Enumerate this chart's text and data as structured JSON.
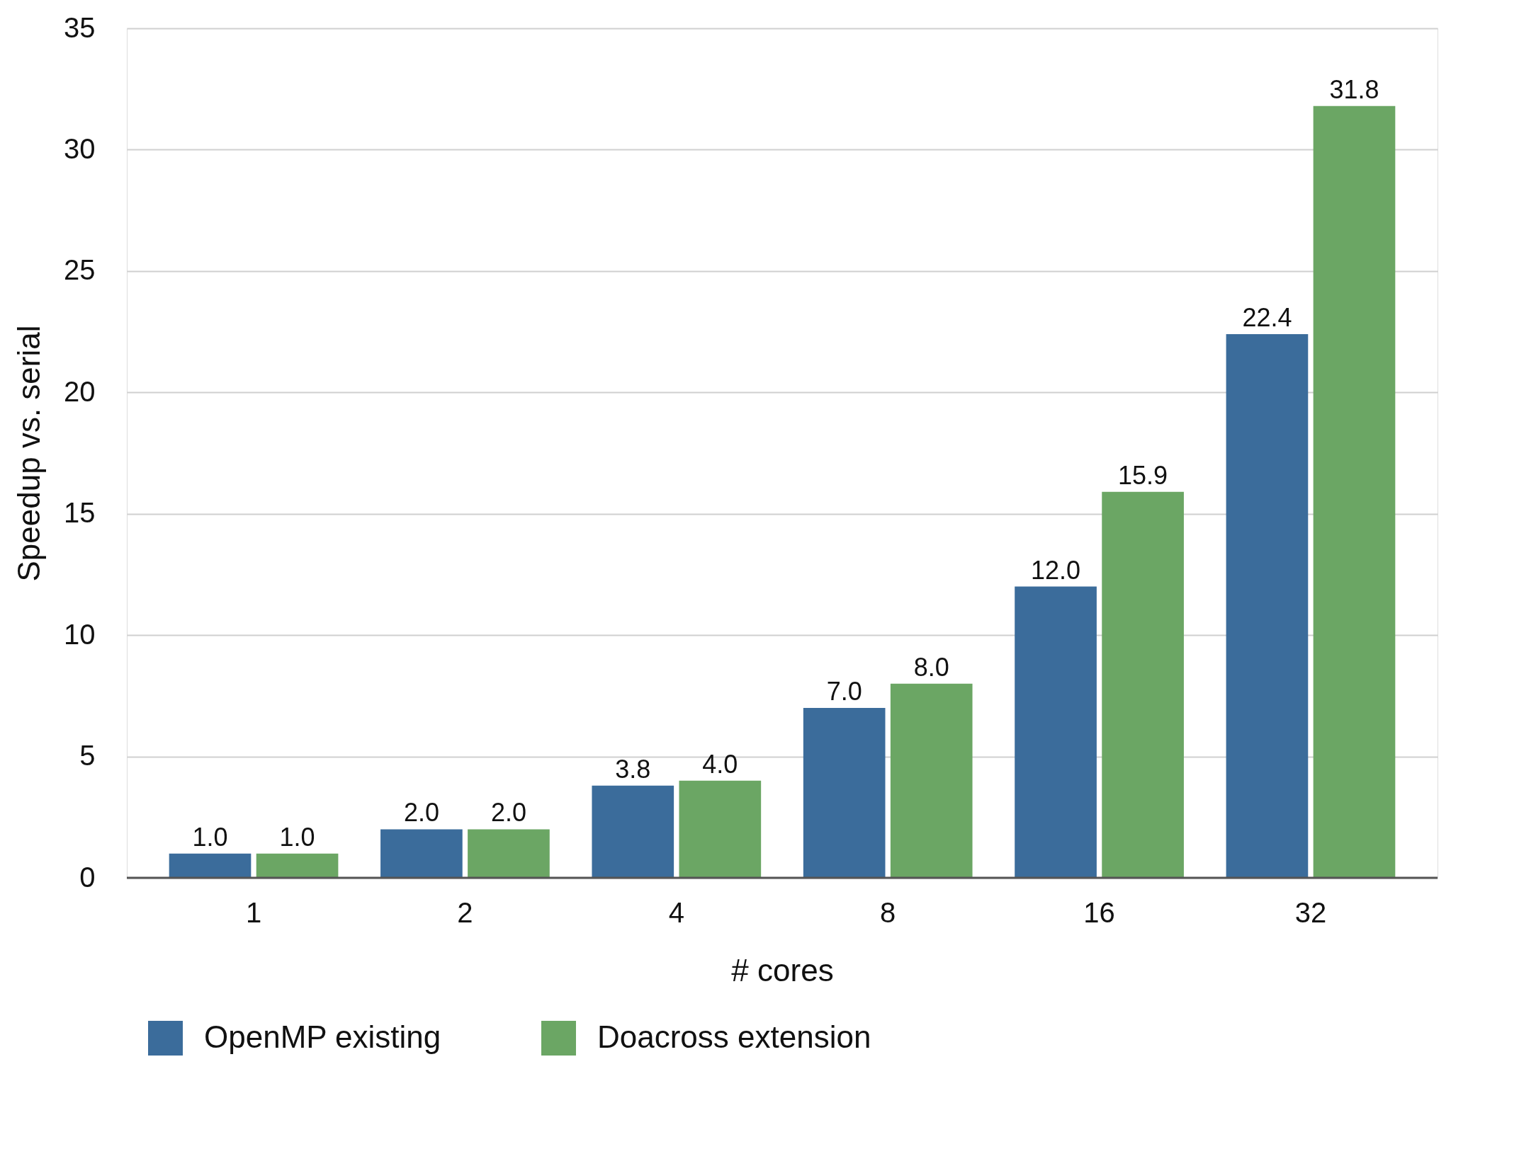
{
  "chart_data": {
    "type": "bar",
    "xlabel": "# cores",
    "ylabel": "Speedup vs. serial",
    "categories": [
      "1",
      "2",
      "4",
      "8",
      "16",
      "32"
    ],
    "series": [
      {
        "name": "OpenMP existing",
        "color": "#3b6c9b",
        "values": [
          1.0,
          2.0,
          3.8,
          7.0,
          12.0,
          22.4
        ],
        "value_labels": [
          "1.0",
          "2.0",
          "3.8",
          "7.0",
          "12.0",
          "22.4"
        ]
      },
      {
        "name": "Doacross extension",
        "color": "#6ba664",
        "values": [
          1.0,
          2.0,
          4.0,
          8.0,
          15.9,
          31.8
        ],
        "value_labels": [
          "1.0",
          "2.0",
          "4.0",
          "8.0",
          "15.9",
          "31.8"
        ]
      }
    ],
    "ylim": [
      0,
      35
    ],
    "yticks": [
      0,
      5,
      10,
      15,
      20,
      25,
      30,
      35
    ],
    "grid": "y",
    "legend": "bottom"
  }
}
